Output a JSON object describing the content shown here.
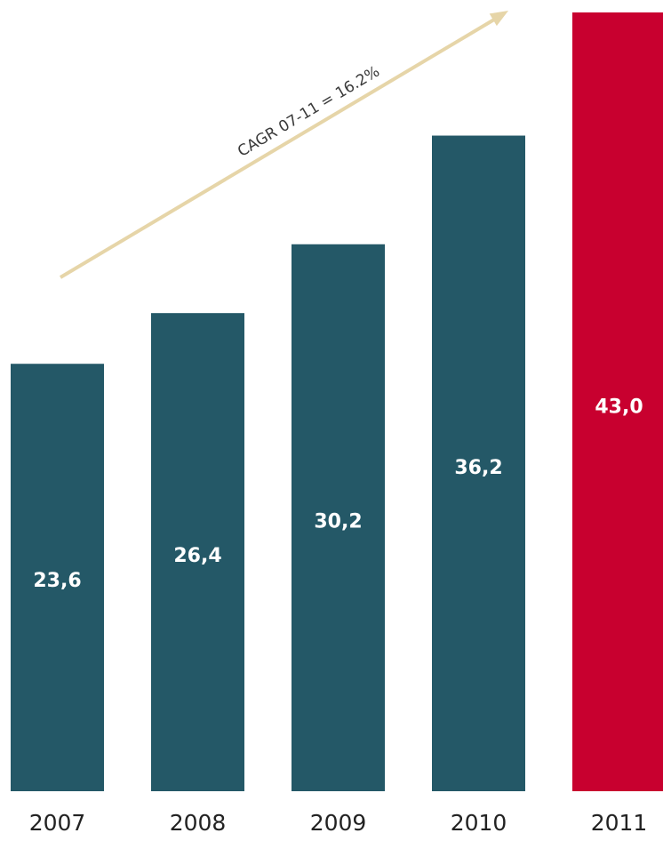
{
  "chart_data": {
    "type": "bar",
    "categories": [
      "2007",
      "2008",
      "2009",
      "2010",
      "2011"
    ],
    "values": [
      23.6,
      26.4,
      30.2,
      36.2,
      43.0
    ],
    "value_labels": [
      "23,6",
      "26,4",
      "30,2",
      "36,2",
      "43,0"
    ],
    "title": "",
    "xlabel": "",
    "ylabel": "",
    "ylim": [
      0,
      43.0
    ],
    "grid": false,
    "legend": "none",
    "annotation": {
      "text": "CAGR 07-11 = 16.2%",
      "shape": "trend-arrow"
    }
  },
  "colors": {
    "bar": "#245867",
    "highlight_bar": "#c8002f",
    "arrow": "#e6d5a8",
    "value_label": "#ffffff",
    "tick_label": "#222222"
  },
  "highlight_index": 4
}
